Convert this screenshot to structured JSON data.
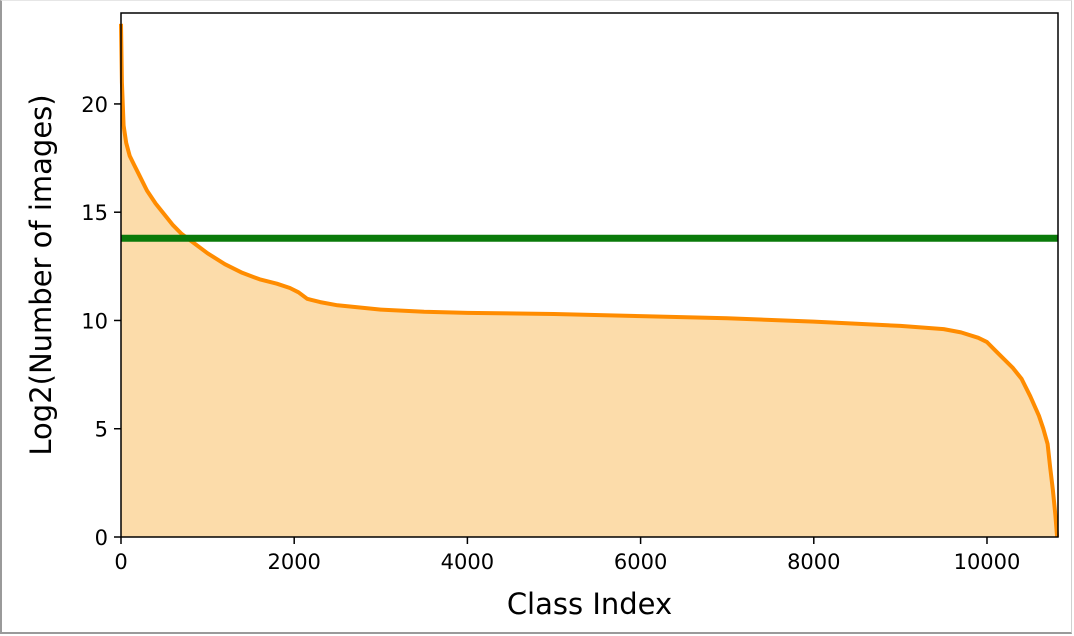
{
  "chart_data": {
    "type": "area",
    "title": "",
    "xlabel": "Class Index",
    "ylabel": "Log2(Number of images)",
    "xlim": [
      0,
      10820
    ],
    "ylim": [
      0,
      24.2
    ],
    "xticks": [
      0,
      2000,
      4000,
      6000,
      8000,
      10000
    ],
    "yticks": [
      0,
      5,
      10,
      15,
      20
    ],
    "grid": false,
    "legend": "none",
    "series": [
      {
        "kind": "area-line",
        "color": "#ff8c00",
        "fill_color": "#fcdcaa",
        "x": [
          0,
          10,
          30,
          60,
          100,
          150,
          200,
          300,
          400,
          500,
          600,
          700,
          800,
          1000,
          1200,
          1400,
          1600,
          1800,
          1950,
          2050,
          2150,
          2200,
          2300,
          2500,
          3000,
          3500,
          4000,
          5000,
          6000,
          7000,
          8000,
          9000,
          9500,
          9700,
          9900,
          10000,
          10100,
          10200,
          10300,
          10400,
          10500,
          10600,
          10650,
          10700,
          10730,
          10760,
          10790,
          10810
        ],
        "y": [
          23.7,
          21.0,
          19.0,
          18.2,
          17.6,
          17.2,
          16.8,
          16.0,
          15.4,
          14.9,
          14.4,
          14.0,
          13.7,
          13.1,
          12.6,
          12.2,
          11.9,
          11.7,
          11.5,
          11.3,
          11.0,
          10.95,
          10.85,
          10.7,
          10.5,
          10.4,
          10.35,
          10.3,
          10.2,
          10.1,
          9.95,
          9.75,
          9.6,
          9.45,
          9.2,
          9.0,
          8.6,
          8.2,
          7.8,
          7.3,
          6.5,
          5.6,
          5.0,
          4.3,
          3.2,
          2.2,
          1.0,
          0.0
        ]
      },
      {
        "kind": "hline",
        "color": "#0a7a0a",
        "y": 13.8
      }
    ]
  }
}
